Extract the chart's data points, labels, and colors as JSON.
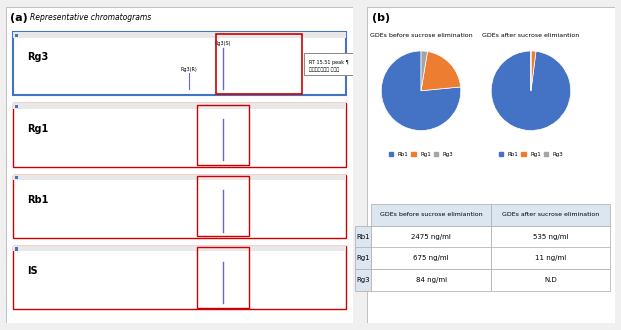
{
  "fig_width": 6.21,
  "fig_height": 3.3,
  "dpi": 100,
  "background_color": "#f0f0f0",
  "panel_a_label": "(a)",
  "panel_a_subtitle": "Representative chromatograms",
  "chromatogram_labels": [
    "Rg3",
    "Rg1",
    "Rb1",
    "IS"
  ],
  "chromatogram_bg": "#ffffff",
  "chromatogram_border_color_top": "#4472c4",
  "chromatogram_border_color_others": "#cc0000",
  "annotation_text": "RT 15.51 peak ¶\n정량분석결과에 사용함",
  "rg3_labels": [
    "Rg3(R)",
    "Rg3(S)"
  ],
  "panel_b_label": "(b)",
  "pie1_title": "GDEs before sucrose elimination",
  "pie2_title": "GDEs after sucrose elimiantion",
  "pie1_values": [
    2475,
    675,
    84
  ],
  "pie2_values": [
    535,
    11,
    0.001
  ],
  "pie_colors": [
    "#4472c4",
    "#ed7d31",
    "#a5a5a5"
  ],
  "pie_legend_labels": [
    "Rb1",
    "Rg1",
    "Rg3"
  ],
  "table_header": [
    "",
    "GDEs before sucrose elimiantion",
    "GDEs after sucrose elimination"
  ],
  "table_rows": [
    [
      "Rb1",
      "2475 ng/ml",
      "535 ng/ml"
    ],
    [
      "Rg1",
      "675 ng/ml",
      "11 ng/ml"
    ],
    [
      "Rg3",
      "84 ng/ml",
      "N.D"
    ]
  ],
  "table_bg": "#dce6f1",
  "table_header_color": "#dce6f1"
}
